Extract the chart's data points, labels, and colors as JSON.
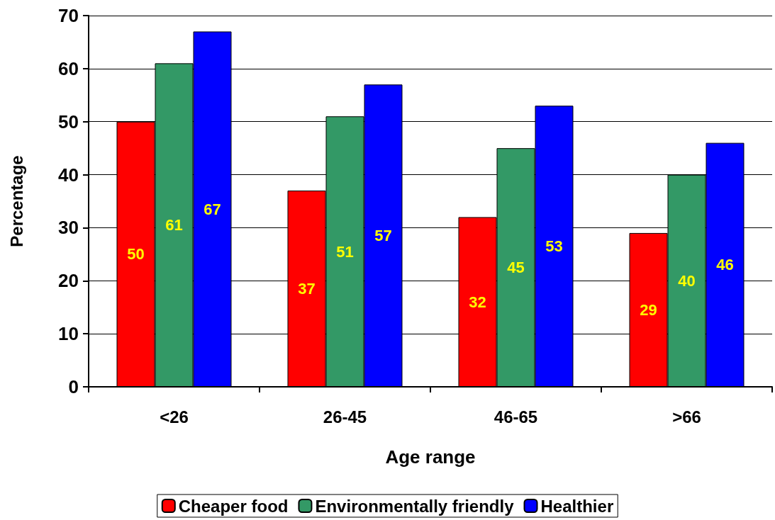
{
  "chart_data": {
    "type": "bar",
    "xlabel": "Age range",
    "ylabel": "Percentage",
    "categories": [
      "<26",
      "26-45",
      "46-65",
      ">66"
    ],
    "series": [
      {
        "name": "Cheaper food",
        "color": "#ff0000",
        "values": [
          50,
          37,
          32,
          29
        ]
      },
      {
        "name": "Environmentally friendly",
        "color": "#339966",
        "values": [
          61,
          51,
          45,
          40
        ]
      },
      {
        "name": "Healthier",
        "color": "#0000ff",
        "values": [
          67,
          57,
          53,
          46
        ]
      }
    ],
    "ylim": [
      0,
      70
    ],
    "yticks": [
      0,
      10,
      20,
      30,
      40,
      50,
      60,
      70
    ],
    "grid": "y",
    "legend": "bottom",
    "data_labels": true
  }
}
